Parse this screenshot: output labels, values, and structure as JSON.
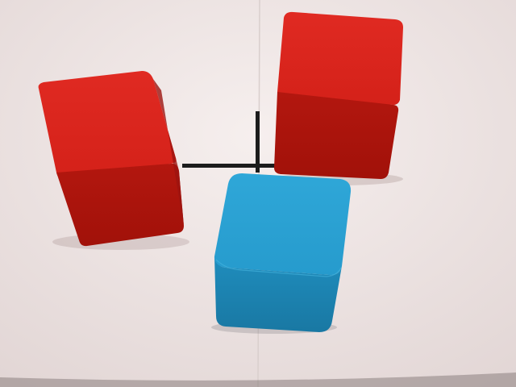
{
  "scene": {
    "background_color": "#efe6e5",
    "seam_color": "#d9cfcd",
    "marker_color": "#1c1c1c",
    "objects": [
      {
        "name": "red-cube-left",
        "color": "#d8231c",
        "shade": "#a8140f"
      },
      {
        "name": "red-cube-right",
        "color": "#d8231c",
        "shade": "#a8140f"
      },
      {
        "name": "blue-cube-front",
        "color": "#2a9fd1",
        "shade": "#1a7eaa"
      },
      {
        "name": "black-cross-marker",
        "color": "#1c1c1c"
      }
    ]
  }
}
